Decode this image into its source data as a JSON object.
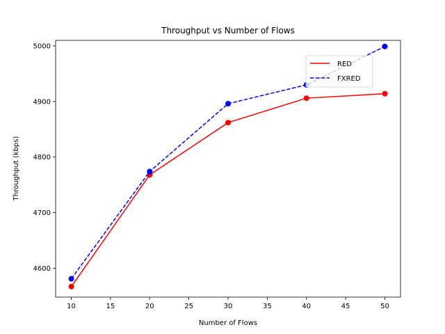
{
  "chart_data": {
    "type": "line",
    "title": "Throughput vs Number of Flows",
    "xlabel": "Number of Flows",
    "ylabel": "Throughput (kbps)",
    "x": [
      10,
      20,
      30,
      40,
      50
    ],
    "xlim": [
      8,
      52
    ],
    "ylim": [
      4548,
      5010
    ],
    "xticks": [
      10,
      15,
      20,
      25,
      30,
      35,
      40,
      45,
      50
    ],
    "yticks": [
      4600,
      4700,
      4800,
      4900,
      5000
    ],
    "grid": false,
    "legend_position": "upper right",
    "series": [
      {
        "name": "RED",
        "values": [
          4567,
          4768,
          4862,
          4906,
          4914
        ],
        "color": "#ff0000",
        "linestyle": "solid",
        "marker": "circle"
      },
      {
        "name": "FXRED",
        "values": [
          4581,
          4774,
          4896,
          4930,
          4999
        ],
        "color": "#0000ff",
        "linestyle": "dashed",
        "marker": "circle"
      }
    ]
  }
}
